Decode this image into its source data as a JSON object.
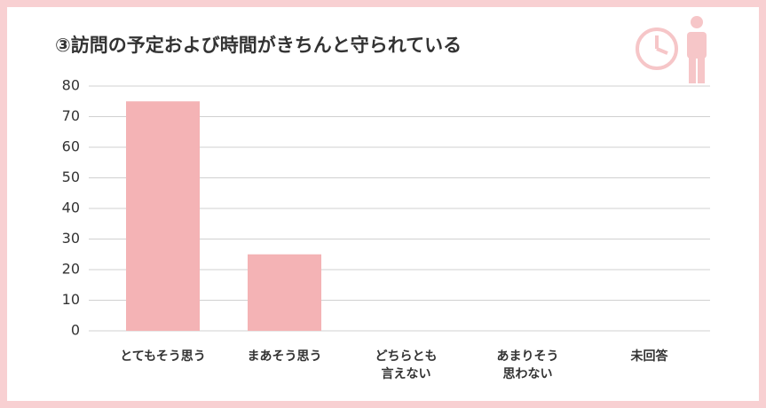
{
  "chart_data": {
    "type": "bar",
    "title": "③訪問の予定および時間がきちんと守られている",
    "categories": [
      "とてもそう思う",
      "まあそう思う",
      "どちらとも\n言えない",
      "あまりそう\n思わない",
      "未回答"
    ],
    "values": [
      75,
      25,
      0,
      0,
      0
    ],
    "color": "#f4b3b5",
    "ylim": [
      0,
      80
    ],
    "yticks": [
      0,
      10,
      20,
      30,
      40,
      50,
      60,
      70,
      80
    ],
    "grid": true
  }
}
